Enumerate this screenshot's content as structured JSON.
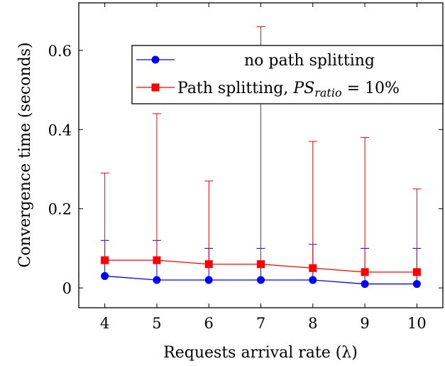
{
  "chart_data": {
    "type": "line",
    "xlabel": "Requests arrival rate (λ)",
    "ylabel": "Convergence time (seconds)",
    "x": [
      4,
      5,
      6,
      7,
      8,
      9,
      10
    ],
    "xlim": [
      3.5,
      10.5
    ],
    "ylim": [
      -0.05,
      0.72
    ],
    "xticks": [
      "4",
      "5",
      "6",
      "7",
      "8",
      "9",
      "10"
    ],
    "yticks": [
      {
        "value": 0,
        "label": "0"
      },
      {
        "value": 0.2,
        "label": "0.2"
      },
      {
        "value": 0.4,
        "label": "0.4"
      },
      {
        "value": 0.6,
        "label": "0.6"
      }
    ],
    "grid": false,
    "legend_position": "top-right",
    "series": [
      {
        "name": "no path splitting",
        "color": "#0000ff",
        "marker": "circle",
        "values": [
          0.03,
          0.02,
          0.02,
          0.02,
          0.02,
          0.01,
          0.01
        ],
        "error_upper": [
          0.12,
          0.12,
          0.1,
          0.1,
          0.11,
          0.1,
          0.1
        ]
      },
      {
        "name_prefix": "Path splitting, ",
        "name_var": "PS",
        "name_sub": "ratio",
        "name_suffix": " = 10%",
        "color": "#ff0000",
        "marker": "square",
        "values": [
          0.07,
          0.07,
          0.06,
          0.06,
          0.05,
          0.04,
          0.04
        ],
        "error_upper": [
          0.29,
          0.44,
          0.27,
          0.66,
          0.37,
          0.38,
          0.25
        ]
      }
    ]
  }
}
